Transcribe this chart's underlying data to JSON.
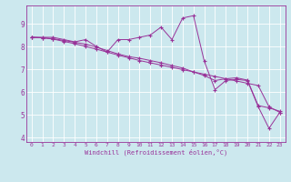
{
  "xlabel": "Windchill (Refroidissement éolien,°C)",
  "bg_color": "#cce8ee",
  "line_color": "#993399",
  "xlim": [
    -0.5,
    23.5
  ],
  "ylim": [
    3.8,
    9.8
  ],
  "xticks": [
    0,
    1,
    2,
    3,
    4,
    5,
    6,
    7,
    8,
    9,
    10,
    11,
    12,
    13,
    14,
    15,
    16,
    17,
    18,
    19,
    20,
    21,
    22,
    23
  ],
  "yticks": [
    4,
    5,
    6,
    7,
    8,
    9
  ],
  "series1_x": [
    0,
    1,
    2,
    3,
    4,
    5,
    6,
    7,
    8,
    9,
    10,
    11,
    12,
    13,
    14,
    15,
    16,
    17,
    18,
    19,
    20,
    21,
    22,
    23
  ],
  "series1_y": [
    8.4,
    8.4,
    8.4,
    8.3,
    8.2,
    8.3,
    8.0,
    7.75,
    8.3,
    8.3,
    8.4,
    8.5,
    8.85,
    8.3,
    9.25,
    9.35,
    7.35,
    6.1,
    6.5,
    6.55,
    6.5,
    5.35,
    4.4,
    5.1
  ],
  "series2_x": [
    0,
    1,
    2,
    3,
    4,
    5,
    6,
    7,
    8,
    9,
    10,
    11,
    12,
    13,
    14,
    15,
    16,
    17,
    18,
    19,
    20,
    21,
    22,
    23
  ],
  "series2_y": [
    8.4,
    8.38,
    8.32,
    8.22,
    8.12,
    8.0,
    7.88,
    7.75,
    7.62,
    7.5,
    7.38,
    7.28,
    7.18,
    7.08,
    6.98,
    6.88,
    6.78,
    6.68,
    6.58,
    6.48,
    6.38,
    6.28,
    5.35,
    5.1
  ],
  "series3_x": [
    0,
    1,
    2,
    3,
    4,
    5,
    6,
    7,
    8,
    9,
    10,
    11,
    12,
    13,
    14,
    15,
    16,
    17,
    18,
    19,
    20,
    21,
    22,
    23
  ],
  "series3_y": [
    8.4,
    8.38,
    8.34,
    8.26,
    8.18,
    8.1,
    7.97,
    7.82,
    7.67,
    7.55,
    7.48,
    7.38,
    7.28,
    7.16,
    7.05,
    6.88,
    6.72,
    6.5,
    6.58,
    6.62,
    6.52,
    5.4,
    5.3,
    5.15
  ]
}
